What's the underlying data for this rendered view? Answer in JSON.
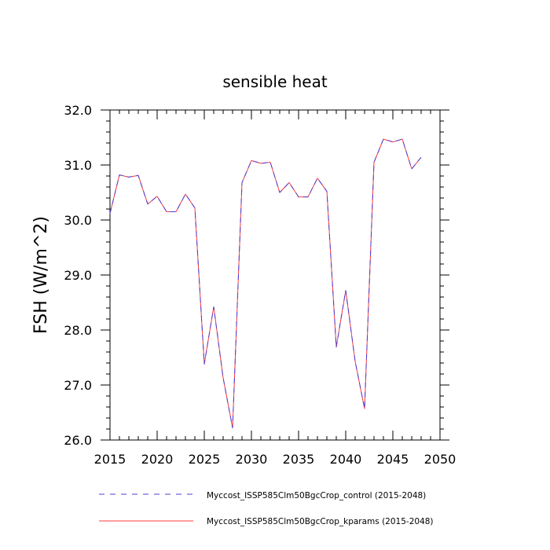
{
  "chart_data": {
    "type": "line",
    "title": "sensible heat",
    "xlabel": "",
    "ylabel": "FSH  (W/m^2)",
    "xlim": [
      2015,
      2050
    ],
    "ylim": [
      26.0,
      32.0
    ],
    "x_ticks": [
      2015,
      2020,
      2025,
      2030,
      2035,
      2040,
      2045,
      2050
    ],
    "x_tick_labels": [
      "2015",
      "2020",
      "2025",
      "2030",
      "2035",
      "2040",
      "2045",
      "2050"
    ],
    "y_ticks": [
      26.0,
      27.0,
      28.0,
      29.0,
      30.0,
      31.0,
      32.0
    ],
    "y_tick_labels": [
      "26.0",
      "27.0",
      "28.0",
      "29.0",
      "30.0",
      "31.0",
      "32.0"
    ],
    "grid": false,
    "legend_position": "bottom",
    "x": [
      2015,
      2016,
      2017,
      2018,
      2019,
      2020,
      2021,
      2022,
      2023,
      2024,
      2025,
      2026,
      2027,
      2028,
      2029,
      2030,
      2031,
      2032,
      2033,
      2034,
      2035,
      2036,
      2037,
      2038,
      2039,
      2040,
      2041,
      2042,
      2043,
      2044,
      2045,
      2046,
      2047,
      2048
    ],
    "series": [
      {
        "name": "Myccost_ISSP585Clm50BgcCrop_control (2015-2048)",
        "color": "#4b3fd6",
        "style": "dashed",
        "values": [
          30.12,
          30.82,
          30.78,
          30.81,
          30.29,
          30.43,
          30.15,
          30.15,
          30.47,
          30.22,
          27.38,
          28.42,
          27.13,
          26.22,
          30.68,
          31.08,
          31.03,
          31.05,
          30.5,
          30.68,
          30.42,
          30.42,
          30.76,
          30.52,
          27.69,
          28.72,
          27.43,
          26.57,
          31.05,
          31.47,
          31.42,
          31.47,
          30.93,
          31.14
        ]
      },
      {
        "name": "Myccost_ISSP585Clm50BgcCrop_kparams (2015-2048)",
        "color": "#ff3b3b",
        "style": "solid",
        "values": [
          30.12,
          30.82,
          30.78,
          30.81,
          30.29,
          30.43,
          30.15,
          30.15,
          30.47,
          30.22,
          27.38,
          28.42,
          27.13,
          26.22,
          30.68,
          31.08,
          31.03,
          31.05,
          30.5,
          30.68,
          30.42,
          30.42,
          30.76,
          30.52,
          27.69,
          28.72,
          27.43,
          26.57,
          31.05,
          31.47,
          31.42,
          31.47,
          30.93,
          31.14
        ]
      }
    ]
  }
}
